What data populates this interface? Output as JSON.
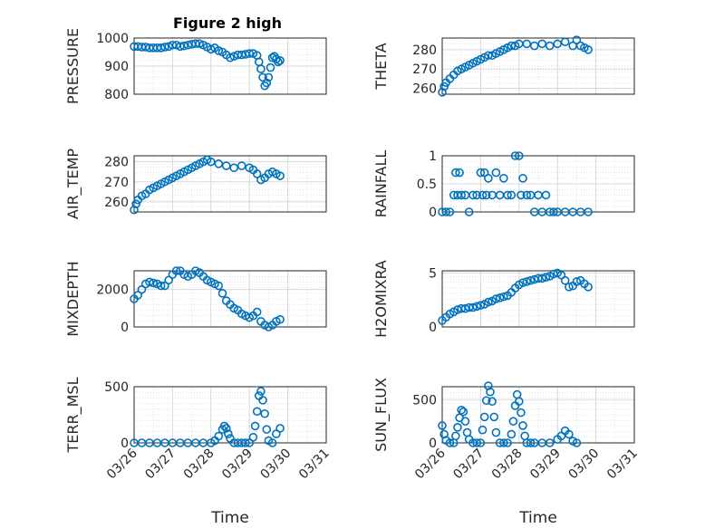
{
  "figure": {
    "title": "Figure 2 high",
    "background": "#ffffff",
    "marker_color": "#0072bd"
  },
  "chart_data": [
    {
      "type": "scatter",
      "title": "Figure 2 high",
      "ylabel": "PRESSURE",
      "xlabel": "",
      "xlim": [
        "03/26",
        "03/31"
      ],
      "ylim": [
        800,
        1000
      ],
      "yticks": [
        "800",
        "900",
        "1000"
      ],
      "grid": true,
      "x_days_from_0326": [
        0,
        0.1,
        0.2,
        0.3,
        0.4,
        0.5,
        0.6,
        0.7,
        0.8,
        0.9,
        1.0,
        1.1,
        1.2,
        1.3,
        1.4,
        1.5,
        1.6,
        1.7,
        1.8,
        1.9,
        2.0,
        2.1,
        2.2,
        2.3,
        2.4,
        2.5,
        2.6,
        2.7,
        2.8,
        2.9,
        3.0,
        3.1,
        3.2,
        3.25,
        3.3,
        3.35,
        3.4,
        3.45,
        3.5,
        3.55,
        3.6,
        3.65,
        3.7,
        3.75,
        3.8
      ],
      "y": [
        970,
        970,
        968,
        968,
        965,
        965,
        965,
        965,
        968,
        970,
        975,
        975,
        970,
        972,
        975,
        978,
        980,
        980,
        975,
        968,
        960,
        965,
        955,
        950,
        940,
        930,
        935,
        940,
        940,
        942,
        945,
        945,
        938,
        915,
        890,
        860,
        830,
        840,
        860,
        895,
        930,
        935,
        925,
        915,
        920
      ]
    },
    {
      "type": "scatter",
      "title": "",
      "ylabel": "THETA",
      "xlabel": "",
      "xlim": [
        "03/26",
        "03/31"
      ],
      "ylim": [
        257,
        286
      ],
      "yticks": [
        "260",
        "270",
        "280"
      ],
      "grid": true,
      "x_days_from_0326": [
        0,
        0.05,
        0.1,
        0.2,
        0.3,
        0.4,
        0.5,
        0.6,
        0.7,
        0.8,
        0.9,
        1.0,
        1.1,
        1.2,
        1.3,
        1.4,
        1.5,
        1.6,
        1.7,
        1.8,
        1.9,
        2.0,
        2.2,
        2.4,
        2.6,
        2.8,
        3.0,
        3.2,
        3.4,
        3.5,
        3.6,
        3.7,
        3.8
      ],
      "y": [
        258,
        261,
        263,
        265,
        267,
        269,
        270,
        271,
        272,
        273,
        274,
        275,
        276,
        277,
        277,
        278,
        279,
        280,
        281,
        282,
        282,
        283,
        283,
        282,
        283,
        282,
        283,
        284,
        282,
        285,
        282,
        281,
        280
      ]
    },
    {
      "type": "scatter",
      "title": "",
      "ylabel": "AIR_TEMP",
      "xlabel": "",
      "xlim": [
        "03/26",
        "03/31"
      ],
      "ylim": [
        255,
        283
      ],
      "yticks": [
        "260",
        "270",
        "280"
      ],
      "grid": true,
      "x_days_from_0326": [
        0,
        0.05,
        0.1,
        0.2,
        0.3,
        0.4,
        0.5,
        0.6,
        0.7,
        0.8,
        0.9,
        1.0,
        1.1,
        1.2,
        1.3,
        1.4,
        1.5,
        1.6,
        1.7,
        1.8,
        1.9,
        2.0,
        2.2,
        2.4,
        2.6,
        2.8,
        3.0,
        3.1,
        3.2,
        3.3,
        3.4,
        3.5,
        3.6,
        3.7,
        3.8
      ],
      "y": [
        256,
        259,
        261,
        263,
        264,
        266,
        267,
        268,
        269,
        270,
        271,
        272,
        273,
        274,
        275,
        276,
        277,
        278,
        279,
        280,
        281,
        280,
        279,
        278,
        277,
        278,
        277,
        276,
        274,
        271,
        272,
        274,
        275,
        274,
        273
      ]
    },
    {
      "type": "scatter",
      "title": "",
      "ylabel": "RAINFALL",
      "xlabel": "",
      "xlim": [
        "03/26",
        "03/31"
      ],
      "ylim": [
        0,
        1
      ],
      "yticks": [
        "0",
        "0.5",
        "1"
      ],
      "grid": true,
      "x_days_from_0326": [
        0,
        0.1,
        0.2,
        0.3,
        0.35,
        0.4,
        0.45,
        0.5,
        0.6,
        0.7,
        0.8,
        0.9,
        1.0,
        1.05,
        1.1,
        1.15,
        1.2,
        1.3,
        1.4,
        1.5,
        1.6,
        1.7,
        1.8,
        1.9,
        2.0,
        2.05,
        2.1,
        2.2,
        2.3,
        2.4,
        2.5,
        2.6,
        2.7,
        2.8,
        2.9,
        3.0,
        3.2,
        3.4,
        3.6,
        3.8
      ],
      "y": [
        0,
        0,
        0,
        0.3,
        0.7,
        0.3,
        0.7,
        0.3,
        0.3,
        0,
        0.3,
        0.3,
        0.7,
        0.3,
        0.7,
        0.3,
        0.6,
        0.3,
        0.7,
        0.3,
        0.6,
        0.3,
        0.3,
        1,
        1,
        0.3,
        0.6,
        0.3,
        0.3,
        0,
        0.3,
        0,
        0.3,
        0,
        0,
        0,
        0,
        0,
        0,
        0
      ]
    },
    {
      "type": "scatter",
      "title": "",
      "ylabel": "MIXDEPTH",
      "xlabel": "",
      "xlim": [
        "03/26",
        "03/31"
      ],
      "ylim": [
        0,
        3000
      ],
      "yticks": [
        "0",
        "2000"
      ],
      "grid": true,
      "x_days_from_0326": [
        0,
        0.1,
        0.2,
        0.3,
        0.4,
        0.5,
        0.6,
        0.7,
        0.8,
        0.9,
        1.0,
        1.1,
        1.2,
        1.3,
        1.4,
        1.5,
        1.6,
        1.7,
        1.8,
        1.9,
        2.0,
        2.1,
        2.2,
        2.3,
        2.4,
        2.5,
        2.6,
        2.7,
        2.8,
        2.9,
        3.0,
        3.1,
        3.2,
        3.3,
        3.4,
        3.5,
        3.6,
        3.7,
        3.8
      ],
      "y": [
        1500,
        1700,
        2000,
        2300,
        2400,
        2350,
        2300,
        2200,
        2200,
        2500,
        2800,
        3000,
        3000,
        2800,
        2700,
        2800,
        3000,
        2900,
        2700,
        2500,
        2400,
        2300,
        2200,
        1800,
        1400,
        1200,
        1000,
        900,
        700,
        600,
        500,
        600,
        800,
        300,
        100,
        0,
        100,
        300,
        400
      ]
    },
    {
      "type": "scatter",
      "title": "",
      "ylabel": "H2OMIXRA",
      "xlabel": "",
      "xlim": [
        "03/26",
        "03/31"
      ],
      "ylim": [
        0,
        5.2
      ],
      "yticks": [
        "0",
        "5"
      ],
      "grid": true,
      "x_days_from_0326": [
        0,
        0.1,
        0.2,
        0.3,
        0.4,
        0.5,
        0.6,
        0.7,
        0.8,
        0.9,
        1.0,
        1.1,
        1.2,
        1.3,
        1.4,
        1.5,
        1.6,
        1.7,
        1.8,
        1.9,
        2.0,
        2.1,
        2.2,
        2.3,
        2.4,
        2.5,
        2.6,
        2.7,
        2.8,
        2.9,
        3.0,
        3.1,
        3.2,
        3.3,
        3.4,
        3.5,
        3.6,
        3.7,
        3.8
      ],
      "y": [
        0.6,
        0.9,
        1.2,
        1.4,
        1.6,
        1.7,
        1.7,
        1.8,
        1.8,
        1.9,
        2.0,
        2.1,
        2.3,
        2.4,
        2.6,
        2.7,
        2.8,
        2.9,
        3.2,
        3.6,
        3.9,
        4.1,
        4.2,
        4.3,
        4.4,
        4.5,
        4.5,
        4.6,
        4.7,
        4.9,
        5.0,
        4.8,
        4.3,
        3.7,
        3.8,
        4.2,
        4.3,
        4.0,
        3.7
      ]
    },
    {
      "type": "scatter",
      "title": "",
      "ylabel": "TERR_MSL",
      "xlabel": "Time",
      "xlim": [
        "03/26",
        "03/31"
      ],
      "ylim": [
        0,
        500
      ],
      "yticks": [
        "0",
        "500"
      ],
      "xticks": [
        "03/26",
        "03/27",
        "03/28",
        "03/29",
        "03/30",
        "03/31"
      ],
      "grid": true,
      "x_days_from_0326": [
        0,
        0.2,
        0.4,
        0.6,
        0.8,
        1.0,
        1.2,
        1.4,
        1.6,
        1.8,
        2.0,
        2.1,
        2.2,
        2.3,
        2.35,
        2.4,
        2.45,
        2.5,
        2.6,
        2.7,
        2.8,
        2.9,
        3.0,
        3.1,
        3.15,
        3.2,
        3.25,
        3.3,
        3.35,
        3.4,
        3.45,
        3.5,
        3.6,
        3.7,
        3.8
      ],
      "y": [
        0,
        0,
        0,
        0,
        0,
        0,
        0,
        0,
        0,
        0,
        0,
        20,
        60,
        120,
        150,
        130,
        80,
        40,
        0,
        0,
        0,
        0,
        0,
        50,
        150,
        280,
        420,
        460,
        380,
        260,
        120,
        20,
        0,
        80,
        130
      ]
    },
    {
      "type": "scatter",
      "title": "",
      "ylabel": "SUN_FLUX",
      "xlabel": "Time",
      "xlim": [
        "03/26",
        "03/31"
      ],
      "ylim": [
        0,
        650
      ],
      "yticks": [
        "0",
        "500"
      ],
      "xticks": [
        "03/26",
        "03/27",
        "03/28",
        "03/29",
        "03/30",
        "03/31"
      ],
      "grid": true,
      "x_days_from_0326": [
        0,
        0.05,
        0.1,
        0.2,
        0.3,
        0.35,
        0.4,
        0.45,
        0.5,
        0.55,
        0.6,
        0.65,
        0.7,
        0.8,
        0.9,
        1.0,
        1.05,
        1.1,
        1.15,
        1.2,
        1.25,
        1.3,
        1.35,
        1.4,
        1.5,
        1.6,
        1.7,
        1.8,
        1.85,
        1.9,
        1.95,
        2.0,
        2.05,
        2.1,
        2.15,
        2.2,
        2.3,
        2.4,
        2.6,
        2.8,
        3.0,
        3.1,
        3.2,
        3.3,
        3.4,
        3.5
      ],
      "y": [
        200,
        100,
        30,
        0,
        0,
        80,
        180,
        290,
        380,
        360,
        250,
        120,
        40,
        0,
        0,
        0,
        150,
        300,
        490,
        660,
        590,
        480,
        300,
        120,
        0,
        0,
        0,
        100,
        250,
        430,
        560,
        480,
        350,
        200,
        80,
        0,
        0,
        0,
        0,
        0,
        40,
        80,
        140,
        100,
        20,
        0
      ]
    }
  ]
}
